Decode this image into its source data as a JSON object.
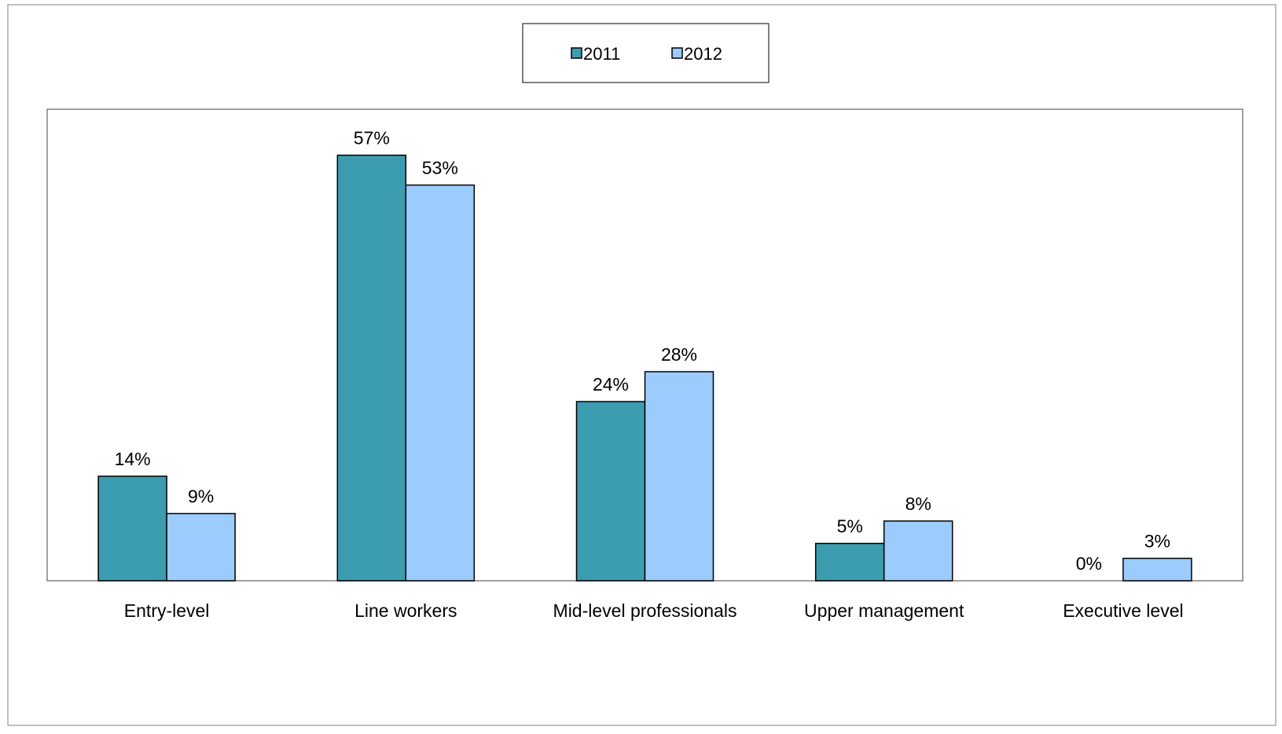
{
  "chart_data": {
    "type": "bar",
    "categories": [
      "Entry-level",
      "Line workers",
      "Mid-level professionals",
      "Upper management",
      "Executive level"
    ],
    "series": [
      {
        "name": "2011",
        "values": [
          14,
          57,
          24,
          5,
          0
        ],
        "labels": [
          "14%",
          "57%",
          "24%",
          "5%",
          "0%"
        ],
        "color": "#3c9cb0"
      },
      {
        "name": "2012",
        "values": [
          9,
          53,
          28,
          8,
          3
        ],
        "labels": [
          "9%",
          "53%",
          "28%",
          "8%",
          "3%"
        ],
        "color": "#9ccbfd"
      }
    ],
    "ylim": [
      0,
      60
    ],
    "grid": false,
    "legend_position": "top-center"
  }
}
